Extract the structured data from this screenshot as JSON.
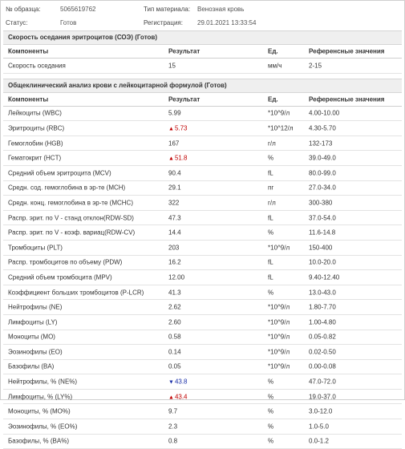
{
  "header": {
    "sample_label": "№ образца:",
    "sample_value": "5065619762",
    "material_label": "Тип материала:",
    "material_value": "Венозная кровь",
    "status_label": "Статус:",
    "status_value": "Готов",
    "registration_label": "Регистрация:",
    "registration_value": "29.01.2021 13:33:54"
  },
  "columns": {
    "component": "Компоненты",
    "result": "Результат",
    "unit": "Ед.",
    "reference": "Референсные значения"
  },
  "sections": [
    {
      "title": "Скорость оседания эритроцитов (СОЭ) (Готов)",
      "rows": [
        {
          "name": "Скорость оседания",
          "result": "15",
          "flag": "",
          "unit": "мм/ч",
          "ref": "2-15"
        }
      ]
    },
    {
      "title": "Общеклинический анализ крови с лейкоцитарной формулой (Готов)",
      "rows": [
        {
          "name": "Лейкоциты (WBC)",
          "result": "5.99",
          "flag": "",
          "unit": "*10^9/л",
          "ref": "4.00-10.00"
        },
        {
          "name": "Эритроциты (RBC)",
          "result": "5.73",
          "flag": "up",
          "unit": "*10^12/л",
          "ref": "4.30-5.70"
        },
        {
          "name": "Гемоглобин (HGB)",
          "result": "167",
          "flag": "",
          "unit": "г/л",
          "ref": "132-173"
        },
        {
          "name": "Гематокрит (HCT)",
          "result": "51.8",
          "flag": "up",
          "unit": "%",
          "ref": "39.0-49.0"
        },
        {
          "name": "Средний объем эритроцита (MCV)",
          "result": "90.4",
          "flag": "",
          "unit": "fL",
          "ref": "80.0-99.0"
        },
        {
          "name": "Средн. сод. гемоглобина в эр-те (MCH)",
          "result": "29.1",
          "flag": "",
          "unit": "пг",
          "ref": "27.0-34.0"
        },
        {
          "name": "Средн. конц. гемоглобина в эр-те (MCHC)",
          "result": "322",
          "flag": "",
          "unit": "г/л",
          "ref": "300-380"
        },
        {
          "name": "Распр. эрит. по V - станд отклон(RDW-SD)",
          "result": "47.3",
          "flag": "",
          "unit": "fL",
          "ref": "37.0-54.0"
        },
        {
          "name": "Распр. эрит. по V - коэф. вариац(RDW-CV)",
          "result": "14.4",
          "flag": "",
          "unit": "%",
          "ref": "11.6-14.8"
        },
        {
          "name": "Тромбоциты (PLT)",
          "result": "203",
          "flag": "",
          "unit": "*10^9/л",
          "ref": "150-400"
        },
        {
          "name": "Распр. тромбоцитов по объему (PDW)",
          "result": "16.2",
          "flag": "",
          "unit": "fL",
          "ref": "10.0-20.0"
        },
        {
          "name": "Средний объем тромбоцита (MPV)",
          "result": "12.00",
          "flag": "",
          "unit": "fL",
          "ref": "9.40-12.40"
        },
        {
          "name": "Коэффициент больших тромбоцитов (P-LCR)",
          "result": "41.3",
          "flag": "",
          "unit": "%",
          "ref": "13.0-43.0"
        },
        {
          "name": "Нейтрофилы (NE)",
          "result": "2.62",
          "flag": "",
          "unit": "*10^9/л",
          "ref": "1.80-7.70"
        },
        {
          "name": "Лимфоциты (LY)",
          "result": "2.60",
          "flag": "",
          "unit": "*10^9/л",
          "ref": "1.00-4.80"
        },
        {
          "name": "Моноциты (MO)",
          "result": "0.58",
          "flag": "",
          "unit": "*10^9/л",
          "ref": "0.05-0.82"
        },
        {
          "name": "Эозинофилы (EO)",
          "result": "0.14",
          "flag": "",
          "unit": "*10^9/л",
          "ref": "0.02-0.50"
        },
        {
          "name": "Базофилы (BA)",
          "result": "0.05",
          "flag": "",
          "unit": "*10^9/л",
          "ref": "0.00-0.08"
        },
        {
          "name": "Нейтрофилы, % (NE%)",
          "result": "43.8",
          "flag": "down",
          "unit": "%",
          "ref": "47.0-72.0"
        },
        {
          "name": "Лимфоциты, % (LY%)",
          "result": "43.4",
          "flag": "up",
          "unit": "%",
          "ref": "19.0-37.0"
        },
        {
          "name": "Моноциты, % (MO%)",
          "result": "9.7",
          "flag": "",
          "unit": "%",
          "ref": "3.0-12.0"
        },
        {
          "name": "Эозинофилы, % (EO%)",
          "result": "2.3",
          "flag": "",
          "unit": "%",
          "ref": "1.0-5.0"
        },
        {
          "name": "Базофилы, % (BA%)",
          "result": "0.8",
          "flag": "",
          "unit": "%",
          "ref": "0.0-1.2"
        }
      ]
    }
  ],
  "flag_icons": {
    "up": "triangle-up-icon",
    "down": "triangle-down-icon"
  },
  "colors": {
    "flag_up": "#c00000",
    "flag_down": "#1a2fa8"
  }
}
